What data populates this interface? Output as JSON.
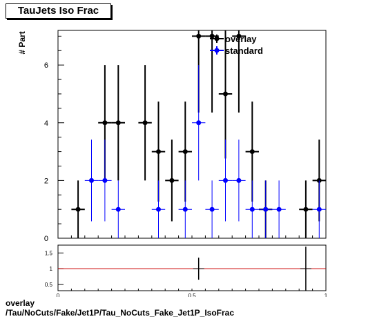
{
  "title": "TauJets Iso Frac",
  "ylabel": "# Part",
  "xlabel_partial": "",
  "footer_line1": "overlay",
  "footer_line2": "/Tau/NoCuts/Fake/Jet1P/Tau_NoCuts_Fake_Jet1P_IsoFrac",
  "colors": {
    "overlay": "#000000",
    "standard": "#0000ff",
    "ratio_line": "#cc0000"
  },
  "chart_data": [
    {
      "type": "scatter",
      "title": "TauJets Iso Frac",
      "xlabel": "",
      "ylabel": "# Part",
      "xlim": [
        0,
        1
      ],
      "ylim": [
        0,
        7.2
      ],
      "yticks": [
        0,
        2,
        4,
        6
      ],
      "grid": false,
      "legend_position": "top-center",
      "bin_width": 0.05,
      "series": [
        {
          "name": "overlay",
          "color": "#000000",
          "points": [
            {
              "x": 0.075,
              "y": 1
            },
            {
              "x": 0.175,
              "y": 4
            },
            {
              "x": 0.225,
              "y": 4
            },
            {
              "x": 0.325,
              "y": 4
            },
            {
              "x": 0.375,
              "y": 3
            },
            {
              "x": 0.425,
              "y": 2
            },
            {
              "x": 0.475,
              "y": 3
            },
            {
              "x": 0.525,
              "y": 7
            },
            {
              "x": 0.575,
              "y": 7
            },
            {
              "x": 0.625,
              "y": 5
            },
            {
              "x": 0.675,
              "y": 7
            },
            {
              "x": 0.725,
              "y": 3
            },
            {
              "x": 0.775,
              "y": 1
            },
            {
              "x": 0.925,
              "y": 1
            },
            {
              "x": 0.975,
              "y": 2
            }
          ]
        },
        {
          "name": "standard",
          "color": "#0000ff",
          "points": [
            {
              "x": 0.125,
              "y": 2
            },
            {
              "x": 0.175,
              "y": 2
            },
            {
              "x": 0.225,
              "y": 1
            },
            {
              "x": 0.375,
              "y": 1
            },
            {
              "x": 0.475,
              "y": 1
            },
            {
              "x": 0.525,
              "y": 4
            },
            {
              "x": 0.575,
              "y": 1
            },
            {
              "x": 0.625,
              "y": 2
            },
            {
              "x": 0.675,
              "y": 2
            },
            {
              "x": 0.725,
              "y": 1
            },
            {
              "x": 0.775,
              "y": 1
            },
            {
              "x": 0.825,
              "y": 1
            },
            {
              "x": 0.975,
              "y": 1
            }
          ]
        }
      ]
    },
    {
      "type": "scatter",
      "title": "",
      "xlabel": "",
      "ylabel": "",
      "xlim": [
        0,
        1
      ],
      "ylim": [
        0.3,
        1.75
      ],
      "yticks": [
        0.5,
        1,
        1.5
      ],
      "ytick_labels": [
        "0.5",
        "1",
        "1.5"
      ],
      "xticks": [
        0,
        0.5,
        1
      ],
      "xtick_labels": [
        "0",
        "0.5",
        "1"
      ],
      "reference_line": 1,
      "series": [
        {
          "name": "",
          "color": "#000000",
          "points": [
            {
              "x": 0.525,
              "y": 1.0,
              "err": 0.35
            },
            {
              "x": 0.925,
              "y": 1.0,
              "err": 0.7
            }
          ]
        }
      ]
    }
  ]
}
